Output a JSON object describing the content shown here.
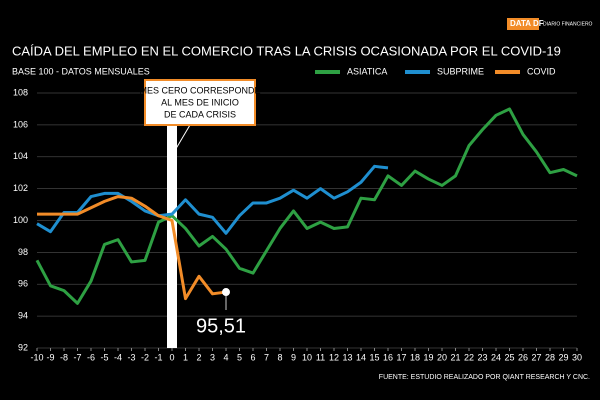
{
  "logo": {
    "brand": "DATA DF",
    "name": "DIARIO FINANCIERO"
  },
  "chart_data": {
    "type": "line",
    "title": "CAÍDA DEL EMPLEO EN EL COMERCIO TRAS LA CRISIS OCASIONADA POR EL COVID-19",
    "subtitle": "BASE 100 - DATOS MENSUALES",
    "annotation": [
      "MES CERO CORRESPONDE",
      "AL MES DE INICIO",
      "DE CADA CRISIS"
    ],
    "source": "FUENTE: ESTUDIO REALIZADO POR QIANT RESEARCH Y CNC.",
    "x": [
      -10,
      -9,
      -8,
      -7,
      -6,
      -5,
      -4,
      -3,
      -2,
      -1,
      0,
      1,
      2,
      3,
      4,
      5,
      6,
      7,
      8,
      9,
      10,
      11,
      12,
      13,
      14,
      15,
      16,
      17,
      18,
      19,
      20,
      21,
      22,
      23,
      24,
      25,
      26,
      27,
      28,
      29,
      30
    ],
    "series": [
      {
        "name": "ASIATICA",
        "color": "#2ea043",
        "values": [
          97.5,
          95.9,
          95.6,
          94.8,
          96.2,
          98.5,
          98.8,
          97.4,
          97.5,
          99.9,
          100.3,
          99.5,
          98.4,
          99,
          98.2,
          97,
          96.7,
          98.1,
          99.5,
          100.6,
          99.5,
          99.9,
          99.5,
          99.6,
          101.4,
          101.3,
          102.8,
          102.2,
          103.1,
          102.6,
          102.2,
          102.8,
          104.7,
          105.7,
          106.6,
          107,
          105.4,
          104.3,
          103,
          103.2,
          102.8
        ]
      },
      {
        "name": "SUBPRIME",
        "color": "#1f8fd0",
        "values": [
          99.8,
          99.3,
          100.5,
          100.5,
          101.5,
          101.7,
          101.7,
          101.2,
          100.6,
          100.3,
          100.4,
          101.3,
          100.4,
          100.2,
          99.2,
          100.3,
          101.1,
          101.1,
          101.4,
          101.9,
          101.4,
          102,
          101.4,
          101.8,
          102.4,
          103.4,
          103.3,
          null,
          null,
          null,
          null,
          null,
          null,
          null,
          null,
          null,
          null,
          null,
          null,
          null,
          null
        ]
      },
      {
        "name": "COVID",
        "color": "#f28c28",
        "values": [
          100.4,
          100.4,
          100.4,
          100.4,
          100.8,
          101.2,
          101.5,
          101.4,
          100.9,
          100.3,
          100,
          95.1,
          96.5,
          95.4,
          95.51,
          null,
          null,
          null,
          null,
          null,
          null,
          null,
          null,
          null,
          null,
          null,
          null,
          null,
          null,
          null,
          null,
          null,
          null,
          null,
          null,
          null,
          null,
          null,
          null,
          null,
          null
        ],
        "value_labels": [
          null,
          null,
          null,
          null,
          null,
          null,
          null,
          null,
          null,
          null,
          null,
          null,
          null,
          null,
          "95,51",
          null,
          null,
          null,
          null,
          null,
          null,
          null,
          null,
          null,
          null,
          null,
          null,
          null,
          null,
          null,
          null,
          null,
          null,
          null,
          null,
          null,
          null,
          null,
          null,
          null,
          null
        ]
      }
    ],
    "xlim": [
      -10,
      30
    ],
    "ylim": [
      92,
      108
    ],
    "xticks": [
      -10,
      -9,
      -8,
      -7,
      -6,
      -5,
      -4,
      -3,
      -2,
      -1,
      0,
      1,
      2,
      3,
      4,
      5,
      6,
      7,
      8,
      9,
      10,
      11,
      12,
      13,
      14,
      15,
      16,
      17,
      18,
      19,
      20,
      21,
      22,
      23,
      24,
      25,
      26,
      27,
      28,
      29,
      30
    ],
    "yticks": [
      92,
      94,
      96,
      98,
      100,
      102,
      104,
      106,
      108
    ],
    "grid": true
  }
}
